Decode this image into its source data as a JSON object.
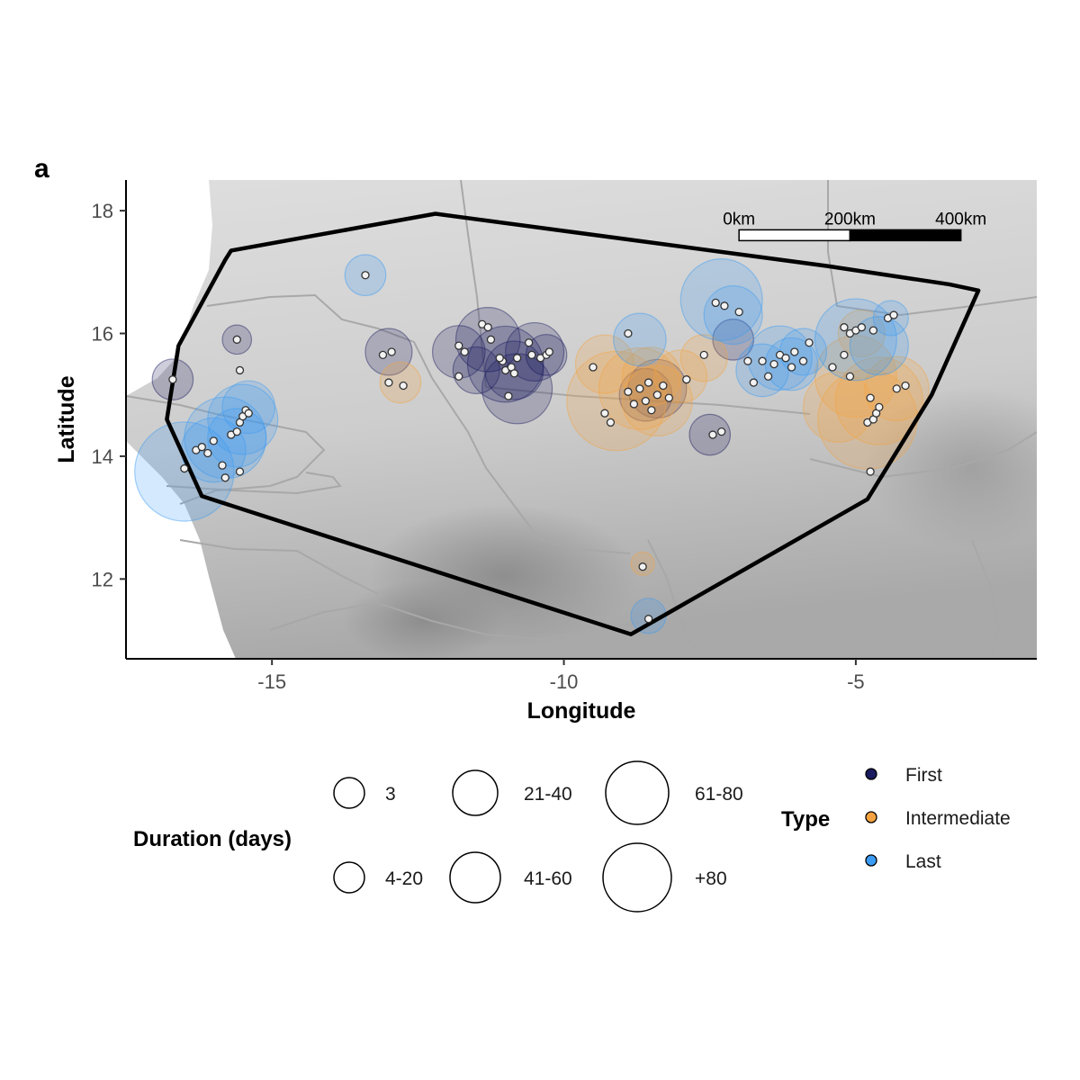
{
  "panel_label": "a",
  "colors": {
    "first": "#1a1a5e",
    "intermediate": "#f5a340",
    "last": "#3a9cf5",
    "point_fill": "#f2f2f2",
    "point_stroke": "#333333",
    "hull": "#000000",
    "border": "#a8a8a8"
  },
  "map": {
    "xlim": [
      -17.5,
      -1.9
    ],
    "ylim": [
      10.7,
      18.5
    ],
    "x_ticks": [
      -15,
      -10,
      -5
    ],
    "y_ticks": [
      12,
      14,
      16,
      18
    ],
    "x_tick_labels": [
      "-15",
      "-10",
      "-5"
    ],
    "y_tick_labels": [
      "12",
      "14",
      "16",
      "18"
    ],
    "xlabel": "Longitude",
    "ylabel": "Latitude",
    "scale_bar": {
      "labels": [
        "0km",
        "200km",
        "400km"
      ],
      "start_lon": -7.0,
      "end_lon": -3.2,
      "lat": 17.6
    },
    "convex_hull": [
      [
        -16.8,
        14.6
      ],
      [
        -16.2,
        13.35
      ],
      [
        -8.85,
        11.1
      ],
      [
        -4.8,
        13.3
      ],
      [
        -3.7,
        15.0
      ],
      [
        -2.9,
        16.7
      ],
      [
        -3.4,
        16.8
      ],
      [
        -5.5,
        17.1
      ],
      [
        -12.2,
        17.95
      ],
      [
        -15.7,
        17.35
      ],
      [
        -15.8,
        17.2
      ],
      [
        -16.6,
        15.8
      ]
    ]
  },
  "chart_data": {
    "type": "scatter",
    "title": "",
    "xlabel": "Longitude",
    "ylabel": "Latitude",
    "x_range": [
      -17.5,
      -1.9
    ],
    "y_range": [
      10.7,
      18.5
    ],
    "size_variable": "Duration (days)",
    "color_variable": "Type",
    "series": [
      {
        "name": "First",
        "buffers": [
          {
            "lon": -16.7,
            "lat": 15.25,
            "r_deg": 0.35
          },
          {
            "lon": -15.6,
            "lat": 15.9,
            "r_deg": 0.25
          },
          {
            "lon": -13.0,
            "lat": 15.7,
            "r_deg": 0.4
          },
          {
            "lon": -11.8,
            "lat": 15.7,
            "r_deg": 0.45
          },
          {
            "lon": -11.3,
            "lat": 15.9,
            "r_deg": 0.55
          },
          {
            "lon": -11.0,
            "lat": 15.5,
            "r_deg": 0.65
          },
          {
            "lon": -10.85,
            "lat": 15.4,
            "r_deg": 0.5
          },
          {
            "lon": -10.5,
            "lat": 15.7,
            "r_deg": 0.5
          },
          {
            "lon": -10.3,
            "lat": 15.65,
            "r_deg": 0.35
          },
          {
            "lon": -11.5,
            "lat": 15.4,
            "r_deg": 0.4
          },
          {
            "lon": -10.8,
            "lat": 15.1,
            "r_deg": 0.6
          },
          {
            "lon": -8.6,
            "lat": 15.0,
            "r_deg": 0.45
          },
          {
            "lon": -8.4,
            "lat": 15.1,
            "r_deg": 0.5
          },
          {
            "lon": -7.5,
            "lat": 14.35,
            "r_deg": 0.35
          },
          {
            "lon": -7.1,
            "lat": 15.9,
            "r_deg": 0.35
          }
        ],
        "points": [
          {
            "lon": -16.7,
            "lat": 15.25
          },
          {
            "lon": -15.6,
            "lat": 15.9
          },
          {
            "lon": -13.1,
            "lat": 15.65
          },
          {
            "lon": -12.95,
            "lat": 15.7
          },
          {
            "lon": -11.8,
            "lat": 15.8
          },
          {
            "lon": -11.7,
            "lat": 15.7
          },
          {
            "lon": -11.4,
            "lat": 16.15
          },
          {
            "lon": -11.3,
            "lat": 16.1
          },
          {
            "lon": -11.05,
            "lat": 15.55
          },
          {
            "lon": -11.0,
            "lat": 15.4
          },
          {
            "lon": -10.9,
            "lat": 15.45
          },
          {
            "lon": -10.85,
            "lat": 15.35
          },
          {
            "lon": -10.8,
            "lat": 15.6
          },
          {
            "lon": -10.6,
            "lat": 15.85
          },
          {
            "lon": -10.4,
            "lat": 15.6
          },
          {
            "lon": -10.3,
            "lat": 15.65
          },
          {
            "lon": -10.25,
            "lat": 15.7
          },
          {
            "lon": -10.55,
            "lat": 15.65
          },
          {
            "lon": -11.1,
            "lat": 15.6
          },
          {
            "lon": -10.95,
            "lat": 14.98
          },
          {
            "lon": -11.8,
            "lat": 15.3
          },
          {
            "lon": -11.25,
            "lat": 15.9
          }
        ]
      },
      {
        "name": "Intermediate",
        "buffers": [
          {
            "lon": -12.8,
            "lat": 15.2,
            "r_deg": 0.35
          },
          {
            "lon": -9.1,
            "lat": 14.9,
            "r_deg": 0.85
          },
          {
            "lon": -8.7,
            "lat": 15.1,
            "r_deg": 0.7
          },
          {
            "lon": -8.4,
            "lat": 14.9,
            "r_deg": 0.6
          },
          {
            "lon": -8.0,
            "lat": 15.3,
            "r_deg": 0.45
          },
          {
            "lon": -8.5,
            "lat": 15.3,
            "r_deg": 0.5
          },
          {
            "lon": -9.3,
            "lat": 15.5,
            "r_deg": 0.5
          },
          {
            "lon": -8.65,
            "lat": 12.25,
            "r_deg": 0.2
          },
          {
            "lon": -4.8,
            "lat": 14.6,
            "r_deg": 0.85
          },
          {
            "lon": -4.6,
            "lat": 14.9,
            "r_deg": 0.75
          },
          {
            "lon": -5.0,
            "lat": 15.3,
            "r_deg": 0.7
          },
          {
            "lon": -4.3,
            "lat": 15.1,
            "r_deg": 0.55
          },
          {
            "lon": -5.3,
            "lat": 14.8,
            "r_deg": 0.6
          },
          {
            "lon": -7.6,
            "lat": 15.6,
            "r_deg": 0.4
          },
          {
            "lon": -4.9,
            "lat": 16.0,
            "r_deg": 0.4
          }
        ],
        "points": [
          {
            "lon": -13.0,
            "lat": 15.2
          },
          {
            "lon": -12.75,
            "lat": 15.15
          },
          {
            "lon": -9.5,
            "lat": 15.45
          },
          {
            "lon": -9.3,
            "lat": 14.7
          },
          {
            "lon": -9.2,
            "lat": 14.55
          },
          {
            "lon": -8.9,
            "lat": 15.05
          },
          {
            "lon": -8.8,
            "lat": 14.85
          },
          {
            "lon": -8.7,
            "lat": 15.1
          },
          {
            "lon": -8.6,
            "lat": 14.9
          },
          {
            "lon": -8.55,
            "lat": 15.2
          },
          {
            "lon": -8.5,
            "lat": 14.75
          },
          {
            "lon": -8.4,
            "lat": 15.0
          },
          {
            "lon": -8.3,
            "lat": 15.15
          },
          {
            "lon": -8.2,
            "lat": 14.95
          },
          {
            "lon": -7.9,
            "lat": 15.25
          },
          {
            "lon": -8.65,
            "lat": 12.2
          },
          {
            "lon": -4.8,
            "lat": 14.55
          },
          {
            "lon": -4.7,
            "lat": 14.6
          },
          {
            "lon": -4.65,
            "lat": 14.7
          },
          {
            "lon": -4.6,
            "lat": 14.8
          },
          {
            "lon": -4.75,
            "lat": 14.95
          },
          {
            "lon": -4.3,
            "lat": 15.1
          },
          {
            "lon": -4.15,
            "lat": 15.15
          },
          {
            "lon": -4.75,
            "lat": 13.75
          },
          {
            "lon": -5.1,
            "lat": 15.3
          },
          {
            "lon": -5.4,
            "lat": 15.45
          },
          {
            "lon": -7.6,
            "lat": 15.65
          }
        ]
      },
      {
        "name": "Last",
        "buffers": [
          {
            "lon": -16.5,
            "lat": 13.75,
            "r_deg": 0.85
          },
          {
            "lon": -16.0,
            "lat": 14.1,
            "r_deg": 0.55
          },
          {
            "lon": -15.8,
            "lat": 14.3,
            "r_deg": 0.7
          },
          {
            "lon": -15.5,
            "lat": 14.6,
            "r_deg": 0.6
          },
          {
            "lon": -15.6,
            "lat": 14.3,
            "r_deg": 0.5
          },
          {
            "lon": -15.4,
            "lat": 14.8,
            "r_deg": 0.45
          },
          {
            "lon": -13.4,
            "lat": 16.95,
            "r_deg": 0.35
          },
          {
            "lon": -7.3,
            "lat": 16.55,
            "r_deg": 0.7
          },
          {
            "lon": -7.1,
            "lat": 16.3,
            "r_deg": 0.5
          },
          {
            "lon": -6.3,
            "lat": 15.6,
            "r_deg": 0.55
          },
          {
            "lon": -6.1,
            "lat": 15.5,
            "r_deg": 0.45
          },
          {
            "lon": -5.9,
            "lat": 15.7,
            "r_deg": 0.4
          },
          {
            "lon": -5.0,
            "lat": 15.9,
            "r_deg": 0.7
          },
          {
            "lon": -4.6,
            "lat": 15.8,
            "r_deg": 0.5
          },
          {
            "lon": -6.6,
            "lat": 15.4,
            "r_deg": 0.45
          },
          {
            "lon": -8.7,
            "lat": 15.9,
            "r_deg": 0.45
          },
          {
            "lon": -8.55,
            "lat": 11.4,
            "r_deg": 0.3
          },
          {
            "lon": -4.4,
            "lat": 16.25,
            "r_deg": 0.3
          }
        ],
        "points": [
          {
            "lon": -16.3,
            "lat": 14.1
          },
          {
            "lon": -16.2,
            "lat": 14.15
          },
          {
            "lon": -16.1,
            "lat": 14.05
          },
          {
            "lon": -16.0,
            "lat": 14.25
          },
          {
            "lon": -15.85,
            "lat": 13.85
          },
          {
            "lon": -15.8,
            "lat": 13.65
          },
          {
            "lon": -15.7,
            "lat": 14.35
          },
          {
            "lon": -15.6,
            "lat": 14.4
          },
          {
            "lon": -15.55,
            "lat": 14.55
          },
          {
            "lon": -15.5,
            "lat": 14.65
          },
          {
            "lon": -15.45,
            "lat": 14.75
          },
          {
            "lon": -15.4,
            "lat": 14.7
          },
          {
            "lon": -15.55,
            "lat": 13.75
          },
          {
            "lon": -16.5,
            "lat": 13.8
          },
          {
            "lon": -15.55,
            "lat": 15.4
          },
          {
            "lon": -13.4,
            "lat": 16.95
          },
          {
            "lon": -8.9,
            "lat": 16.0
          },
          {
            "lon": -7.4,
            "lat": 16.5
          },
          {
            "lon": -7.25,
            "lat": 16.45
          },
          {
            "lon": -7.0,
            "lat": 16.35
          },
          {
            "lon": -6.6,
            "lat": 15.55
          },
          {
            "lon": -6.4,
            "lat": 15.5
          },
          {
            "lon": -6.3,
            "lat": 15.65
          },
          {
            "lon": -6.2,
            "lat": 15.6
          },
          {
            "lon": -6.1,
            "lat": 15.45
          },
          {
            "lon": -6.05,
            "lat": 15.7
          },
          {
            "lon": -5.9,
            "lat": 15.55
          },
          {
            "lon": -5.8,
            "lat": 15.85
          },
          {
            "lon": -6.5,
            "lat": 15.3
          },
          {
            "lon": -6.75,
            "lat": 15.2
          },
          {
            "lon": -6.85,
            "lat": 15.55
          },
          {
            "lon": -5.2,
            "lat": 16.1
          },
          {
            "lon": -5.1,
            "lat": 16.0
          },
          {
            "lon": -5.0,
            "lat": 16.05
          },
          {
            "lon": -4.9,
            "lat": 16.1
          },
          {
            "lon": -4.7,
            "lat": 16.05
          },
          {
            "lon": -5.2,
            "lat": 15.65
          },
          {
            "lon": -4.45,
            "lat": 16.25
          },
          {
            "lon": -4.35,
            "lat": 16.3
          },
          {
            "lon": -8.55,
            "lat": 11.35
          },
          {
            "lon": -7.3,
            "lat": 14.4
          },
          {
            "lon": -7.45,
            "lat": 14.35
          }
        ]
      }
    ],
    "legend": {
      "size": {
        "title": "Duration (days)",
        "entries": [
          {
            "label": "3",
            "r_px": 17
          },
          {
            "label": "4-20",
            "r_px": 17
          },
          {
            "label": "21-40",
            "r_px": 25
          },
          {
            "label": "41-60",
            "r_px": 28
          },
          {
            "label": "61-80",
            "r_px": 35
          },
          {
            "label": "+80",
            "r_px": 38
          }
        ]
      },
      "color": {
        "title": "Type",
        "entries": [
          {
            "label": "First",
            "color": "#1a1a5e"
          },
          {
            "label": "Intermediate",
            "color": "#f5a340"
          },
          {
            "label": "Last",
            "color": "#3a9cf5"
          }
        ]
      }
    }
  }
}
